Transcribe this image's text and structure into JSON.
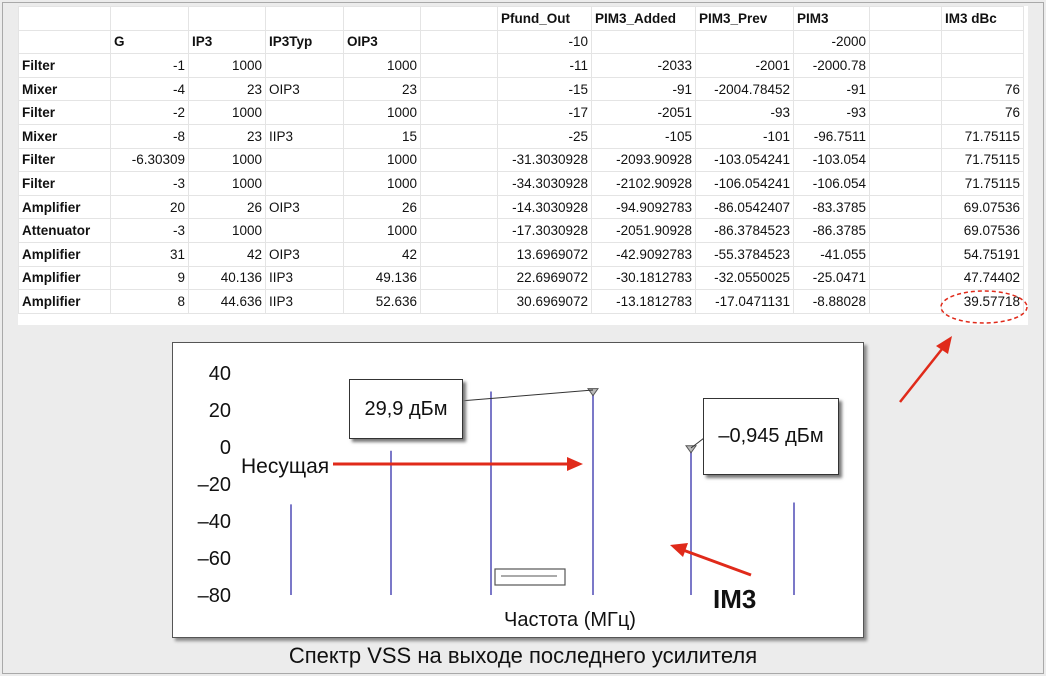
{
  "table": {
    "columns": [
      "",
      "G",
      "IP3",
      "IP3Typ",
      "OIP3",
      "",
      "Pfund_Out",
      "PIM3_Added",
      "PIM3_Prev",
      "PIM3",
      "IM3 dBc"
    ],
    "header_row_1": [
      "",
      "",
      "",
      "",
      "",
      "",
      "Pfund_Out",
      "PIM3_Added",
      "PIM3_Prev",
      "PIM3",
      "",
      "IM3 dBc"
    ],
    "header_row_2": [
      "",
      "G",
      "IP3",
      "IP3Typ",
      "OIP3",
      "",
      "-10",
      "",
      "",
      "-2000",
      "",
      ""
    ],
    "rows": [
      [
        "Filter",
        "-1",
        "1000",
        "",
        "1000",
        "",
        "-11",
        "-2033",
        "-2001",
        "-2000.78",
        "",
        ""
      ],
      [
        "Mixer",
        "-4",
        "23",
        "OIP3",
        "23",
        "",
        "-15",
        "-91",
        "-2004.78452",
        "-91",
        "",
        "76"
      ],
      [
        "Filter",
        "-2",
        "1000",
        "",
        "1000",
        "",
        "-17",
        "-2051",
        "-93",
        "-93",
        "",
        "76"
      ],
      [
        "Mixer",
        "-8",
        "23",
        "IIP3",
        "15",
        "",
        "-25",
        "-105",
        "-101",
        "-96.7511",
        "",
        "71.75115"
      ],
      [
        "Filter",
        "-6.30309",
        "1000",
        "",
        "1000",
        "",
        "-31.3030928",
        "-2093.90928",
        "-103.054241",
        "-103.054",
        "",
        "71.75115"
      ],
      [
        "Filter",
        "-3",
        "1000",
        "",
        "1000",
        "",
        "-34.3030928",
        "-2102.90928",
        "-106.054241",
        "-106.054",
        "",
        "71.75115"
      ],
      [
        "Amplifier",
        "20",
        "26",
        "OIP3",
        "26",
        "",
        "-14.3030928",
        "-94.9092783",
        "-86.0542407",
        "-83.3785",
        "",
        "69.07536"
      ],
      [
        "Attenuator",
        "-3",
        "1000",
        "",
        "1000",
        "",
        "-17.3030928",
        "-2051.90928",
        "-86.3784523",
        "-86.3785",
        "",
        "69.07536"
      ],
      [
        "Amplifier",
        "31",
        "42",
        "OIP3",
        "42",
        "",
        "13.6969072",
        "-42.9092783",
        "-55.3784523",
        "-41.055",
        "",
        "54.75191"
      ],
      [
        "Amplifier",
        "9",
        "40.136",
        "IIP3",
        "49.136",
        "",
        "22.6969072",
        "-30.1812783",
        "-32.0550025",
        "-25.0471",
        "",
        "47.74402"
      ],
      [
        "Amplifier",
        "8",
        "44.636",
        "IIP3",
        "52.636",
        "",
        "30.6969072",
        "-13.1812783",
        "-17.0471131",
        "-8.88028",
        "",
        "39.57718"
      ]
    ]
  },
  "chart_data": {
    "type": "bar",
    "title": "",
    "xlabel": "Частота (МГц)",
    "ylabel": "",
    "ylim": [
      -80,
      40
    ],
    "yticks": [
      "40",
      "20",
      "0",
      "–20",
      "–40",
      "–60",
      "–80"
    ],
    "grid": false,
    "values": [
      -31,
      -2,
      30,
      29.9,
      -0.945,
      -30
    ],
    "annotations": {
      "carrier_label": "Несущая",
      "carrier_value": "29,9 дБм",
      "im3_value": "–0,945 дБм",
      "im3_label": "IM3"
    },
    "colors": {
      "spectral_line": "#7b78c8",
      "arrow": "#e02a1a",
      "highlight": "#e02a1a"
    }
  },
  "caption": "Спектр VSS на выходе последнего усилителя"
}
